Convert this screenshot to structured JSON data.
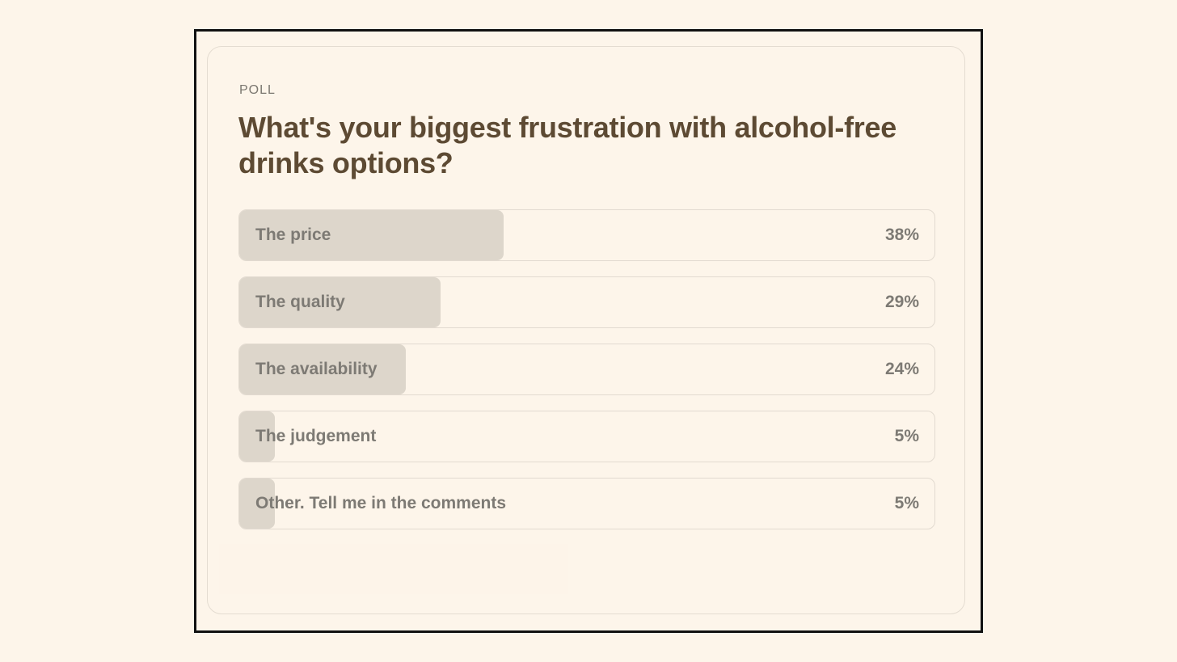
{
  "poll": {
    "eyebrow": "POLL",
    "question": "What's your biggest frustration with alcohol-free drinks options?",
    "options": [
      {
        "label": "The price",
        "percent_label": "38%",
        "fraction": 0.38
      },
      {
        "label": "The quality",
        "percent_label": "29%",
        "fraction": 0.29
      },
      {
        "label": "The availability",
        "percent_label": "24%",
        "fraction": 0.24
      },
      {
        "label": "The judgement",
        "percent_label": "5%",
        "fraction": 0.05
      },
      {
        "label": "Other. Tell me in the comments",
        "percent_label": "5%",
        "fraction": 0.05
      }
    ]
  },
  "colors": {
    "background": "#fdf5ea",
    "bar_fill": "#ddd6cb",
    "title": "#5d4a33",
    "option_text": "#7d7a74"
  }
}
